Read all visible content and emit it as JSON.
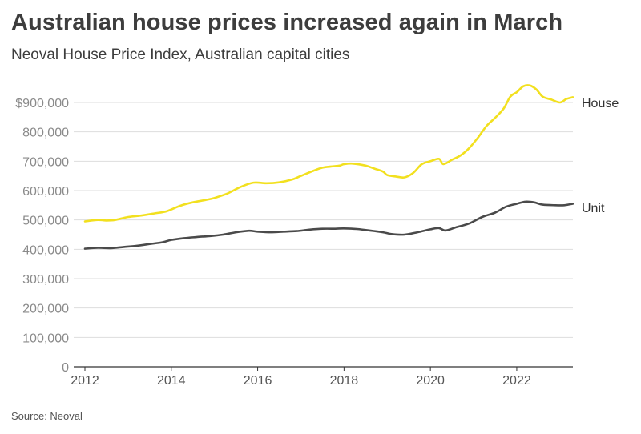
{
  "header": {
    "title": "Australian house prices increased again in March",
    "subtitle": "Neoval House Price Index, Australian capital cities"
  },
  "footer": {
    "source": "Source: Neoval"
  },
  "chart_data": {
    "type": "line",
    "y_ticks": [
      {
        "value": 0,
        "label": "0"
      },
      {
        "value": 100000,
        "label": "100,000"
      },
      {
        "value": 200000,
        "label": "200,000"
      },
      {
        "value": 300000,
        "label": "300,000"
      },
      {
        "value": 400000,
        "label": "400,000"
      },
      {
        "value": 500000,
        "label": "500,000"
      },
      {
        "value": 600000,
        "label": "600,000"
      },
      {
        "value": 700000,
        "label": "700,000"
      },
      {
        "value": 800000,
        "label": "800,000"
      },
      {
        "value": 900000,
        "label": "$900,000"
      }
    ],
    "x_ticks": [
      {
        "value": 2012,
        "label": "2012"
      },
      {
        "value": 2014,
        "label": "2014"
      },
      {
        "value": 2016,
        "label": "2016"
      },
      {
        "value": 2018,
        "label": "2018"
      },
      {
        "value": 2020,
        "label": "2020"
      },
      {
        "value": 2022,
        "label": "2022"
      }
    ],
    "xlim": [
      2012,
      2023.3
    ],
    "ylim": [
      0,
      900000
    ],
    "grid": "horizontal",
    "colors": {
      "House": "#f2e01f",
      "Unit": "#4a4a4a",
      "grid": "#dddddd",
      "axis": "#333333"
    },
    "series": [
      {
        "name": "House",
        "color": "#f2e01f",
        "points": [
          [
            2012.0,
            495000
          ],
          [
            2012.3,
            500000
          ],
          [
            2012.5,
            498000
          ],
          [
            2012.7,
            500000
          ],
          [
            2013.0,
            510000
          ],
          [
            2013.3,
            515000
          ],
          [
            2013.6,
            522000
          ],
          [
            2013.9,
            530000
          ],
          [
            2014.2,
            548000
          ],
          [
            2014.5,
            560000
          ],
          [
            2014.8,
            568000
          ],
          [
            2015.0,
            575000
          ],
          [
            2015.3,
            590000
          ],
          [
            2015.6,
            612000
          ],
          [
            2015.9,
            627000
          ],
          [
            2016.2,
            625000
          ],
          [
            2016.5,
            628000
          ],
          [
            2016.8,
            638000
          ],
          [
            2017.0,
            650000
          ],
          [
            2017.3,
            668000
          ],
          [
            2017.5,
            678000
          ],
          [
            2017.7,
            682000
          ],
          [
            2017.9,
            685000
          ],
          [
            2018.0,
            690000
          ],
          [
            2018.2,
            692000
          ],
          [
            2018.5,
            685000
          ],
          [
            2018.7,
            675000
          ],
          [
            2018.9,
            665000
          ],
          [
            2019.0,
            653000
          ],
          [
            2019.2,
            648000
          ],
          [
            2019.4,
            645000
          ],
          [
            2019.6,
            660000
          ],
          [
            2019.8,
            690000
          ],
          [
            2020.0,
            700000
          ],
          [
            2020.2,
            708000
          ],
          [
            2020.3,
            690000
          ],
          [
            2020.5,
            705000
          ],
          [
            2020.7,
            720000
          ],
          [
            2020.9,
            745000
          ],
          [
            2021.1,
            780000
          ],
          [
            2021.3,
            820000
          ],
          [
            2021.5,
            848000
          ],
          [
            2021.7,
            880000
          ],
          [
            2021.85,
            920000
          ],
          [
            2022.0,
            935000
          ],
          [
            2022.15,
            955000
          ],
          [
            2022.3,
            958000
          ],
          [
            2022.45,
            945000
          ],
          [
            2022.6,
            920000
          ],
          [
            2022.8,
            910000
          ],
          [
            2023.0,
            900000
          ],
          [
            2023.15,
            912000
          ],
          [
            2023.3,
            918000
          ]
        ]
      },
      {
        "name": "Unit",
        "color": "#4a4a4a",
        "points": [
          [
            2012.0,
            402000
          ],
          [
            2012.3,
            405000
          ],
          [
            2012.6,
            404000
          ],
          [
            2012.9,
            408000
          ],
          [
            2013.2,
            412000
          ],
          [
            2013.5,
            418000
          ],
          [
            2013.8,
            424000
          ],
          [
            2014.0,
            432000
          ],
          [
            2014.3,
            438000
          ],
          [
            2014.6,
            442000
          ],
          [
            2014.9,
            445000
          ],
          [
            2015.2,
            450000
          ],
          [
            2015.5,
            458000
          ],
          [
            2015.8,
            463000
          ],
          [
            2016.0,
            460000
          ],
          [
            2016.3,
            458000
          ],
          [
            2016.6,
            460000
          ],
          [
            2016.9,
            462000
          ],
          [
            2017.2,
            467000
          ],
          [
            2017.5,
            470000
          ],
          [
            2017.8,
            470000
          ],
          [
            2018.0,
            471000
          ],
          [
            2018.3,
            469000
          ],
          [
            2018.6,
            464000
          ],
          [
            2018.9,
            458000
          ],
          [
            2019.1,
            452000
          ],
          [
            2019.4,
            450000
          ],
          [
            2019.7,
            458000
          ],
          [
            2020.0,
            468000
          ],
          [
            2020.2,
            472000
          ],
          [
            2020.35,
            464000
          ],
          [
            2020.6,
            475000
          ],
          [
            2020.9,
            488000
          ],
          [
            2021.2,
            510000
          ],
          [
            2021.5,
            525000
          ],
          [
            2021.75,
            545000
          ],
          [
            2022.0,
            555000
          ],
          [
            2022.2,
            562000
          ],
          [
            2022.4,
            560000
          ],
          [
            2022.6,
            552000
          ],
          [
            2022.9,
            550000
          ],
          [
            2023.1,
            550000
          ],
          [
            2023.3,
            555000
          ]
        ]
      }
    ]
  }
}
